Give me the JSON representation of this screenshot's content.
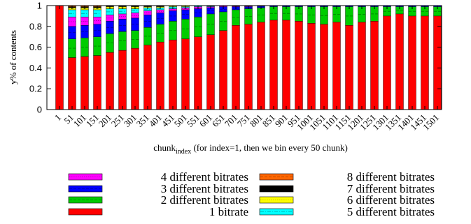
{
  "chart_data": {
    "type": "bar",
    "stacked": true,
    "ylabel": "y% of contents",
    "xlabel_main": "chunk",
    "xlabel_sub": "index",
    "xlabel_rest": " (for index=1, then we bin every 50 chunk)",
    "ylim": [
      0,
      1
    ],
    "yticks": [
      "0",
      "0.2",
      "0.4",
      "0.6",
      "0.8",
      "1"
    ],
    "categories": [
      "1",
      "51",
      "101",
      "151",
      "201",
      "251",
      "301",
      "351",
      "401",
      "451",
      "501",
      "551",
      "601",
      "651",
      "701",
      "751",
      "801",
      "851",
      "901",
      "951",
      "1001",
      "1051",
      "1101",
      "1151",
      "1201",
      "1251",
      "1301",
      "1351",
      "1401",
      "1451",
      "1501"
    ],
    "series": [
      {
        "name": "1 bitrate",
        "color": "#ff0000",
        "pattern": "solid",
        "values": [
          1.0,
          0.5,
          0.51,
          0.52,
          0.55,
          0.57,
          0.59,
          0.62,
          0.65,
          0.67,
          0.68,
          0.7,
          0.72,
          0.76,
          0.81,
          0.82,
          0.84,
          0.86,
          0.86,
          0.85,
          0.83,
          0.82,
          0.84,
          0.81,
          0.84,
          0.85,
          0.9,
          0.92,
          0.9,
          0.9,
          0.9
        ]
      },
      {
        "name": "2 different bitrates",
        "color": "#00cc00",
        "pattern": "dashed",
        "values": [
          0,
          0.18,
          0.18,
          0.18,
          0.18,
          0.18,
          0.17,
          0.17,
          0.17,
          0.18,
          0.19,
          0.19,
          0.2,
          0.18,
          0.15,
          0.15,
          0.14,
          0.13,
          0.13,
          0.14,
          0.16,
          0.17,
          0.15,
          0.18,
          0.15,
          0.14,
          0.09,
          0.07,
          0.09,
          0.09,
          0.09
        ]
      },
      {
        "name": "3 different bitrates",
        "color": "#0000ff",
        "pattern": "dashed",
        "values": [
          0,
          0.12,
          0.12,
          0.12,
          0.12,
          0.12,
          0.12,
          0.12,
          0.11,
          0.1,
          0.09,
          0.08,
          0.06,
          0.05,
          0.03,
          0.02,
          0.015,
          0.01,
          0.01,
          0.01,
          0.01,
          0.01,
          0.01,
          0.01,
          0.01,
          0.01,
          0.01,
          0.01,
          0.01,
          0.01,
          0.01
        ]
      },
      {
        "name": "4 different bitrates",
        "color": "#ff00ff",
        "pattern": "dotted",
        "values": [
          0,
          0.09,
          0.08,
          0.07,
          0.06,
          0.05,
          0.05,
          0.04,
          0.03,
          0.02,
          0.02,
          0.02,
          0.01,
          0.01,
          0.005,
          0.005,
          0.005,
          0,
          0,
          0,
          0,
          0,
          0,
          0,
          0,
          0,
          0,
          0,
          0,
          0,
          0
        ]
      },
      {
        "name": "5 different bitrates",
        "color": "#00ffff",
        "pattern": "dashdot",
        "values": [
          0,
          0.07,
          0.07,
          0.07,
          0.06,
          0.05,
          0.04,
          0.03,
          0.02,
          0.02,
          0.01,
          0.01,
          0.005,
          0,
          0,
          0,
          0,
          0,
          0,
          0,
          0,
          0,
          0,
          0,
          0,
          0,
          0,
          0,
          0,
          0,
          0
        ]
      },
      {
        "name": "6 different bitrates",
        "color": "#ffff00",
        "pattern": "dotted",
        "values": [
          0,
          0.02,
          0.02,
          0.02,
          0.02,
          0.02,
          0.02,
          0.01,
          0.01,
          0.01,
          0.01,
          0,
          0,
          0,
          0,
          0,
          0,
          0,
          0,
          0,
          0,
          0,
          0,
          0,
          0,
          0,
          0,
          0,
          0,
          0,
          0
        ]
      },
      {
        "name": "7 different bitrates",
        "color": "#000000",
        "pattern": "solid",
        "values": [
          0,
          0.01,
          0.01,
          0.01,
          0.01,
          0.01,
          0.01,
          0.005,
          0.005,
          0,
          0,
          0,
          0,
          0,
          0,
          0,
          0,
          0,
          0,
          0,
          0,
          0,
          0,
          0,
          0,
          0,
          0,
          0,
          0,
          0,
          0
        ]
      },
      {
        "name": "8 different bitrates",
        "color": "#ff6600",
        "pattern": "dashed",
        "values": [
          0,
          0.01,
          0.01,
          0.01,
          0,
          0,
          0,
          0,
          0,
          0,
          0,
          0,
          0,
          0,
          0,
          0,
          0,
          0,
          0,
          0,
          0,
          0,
          0,
          0,
          0,
          0,
          0,
          0,
          0,
          0,
          0
        ]
      }
    ],
    "legend_placement": "bottom",
    "legend_left": [
      "4 different bitrates",
      "3 different bitrates",
      "2 different bitrates",
      "1 bitrate"
    ],
    "legend_right": [
      "8 different bitrates",
      "7 different bitrates",
      "6 different bitrates",
      "5 different bitrates"
    ],
    "grid": false
  }
}
